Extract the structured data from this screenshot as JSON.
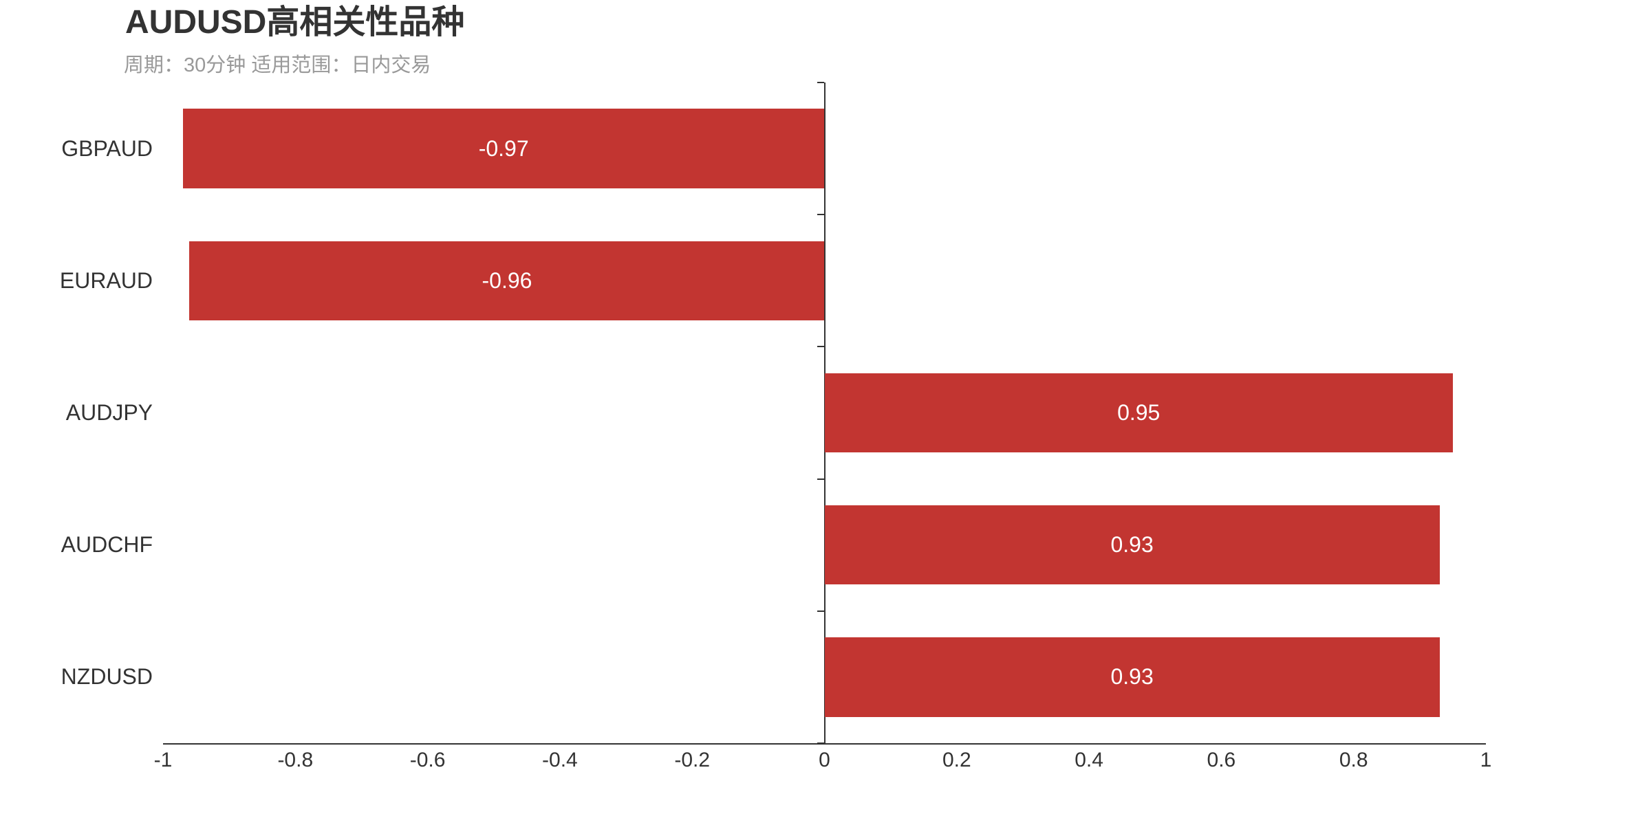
{
  "title": "AUDUSD高相关性品种",
  "subtitle": "周期：30分钟 适用范围：日内交易",
  "colors": {
    "bar": "#c23531",
    "axis_line": "#333333",
    "title_text": "#333333",
    "subtitle_text": "#999999",
    "bar_value_text": "#ffffff",
    "tick_text": "#333333",
    "background": "#ffffff"
  },
  "chart_data": {
    "type": "bar",
    "orientation": "horizontal",
    "title": "AUDUSD高相关性品种",
    "subtitle": "周期：30分钟 适用范围：日内交易",
    "categories": [
      "GBPAUD",
      "EURAUD",
      "AUDJPY",
      "AUDCHF",
      "NZDUSD"
    ],
    "values": [
      -0.97,
      -0.96,
      0.95,
      0.93,
      0.93
    ],
    "value_labels": [
      "-0.97",
      "-0.96",
      "0.95",
      "0.93",
      "0.93"
    ],
    "xlim": [
      -1,
      1
    ],
    "x_tick_values": [
      -1,
      -0.8,
      -0.6,
      -0.4,
      -0.2,
      0,
      0.2,
      0.4,
      0.6,
      0.8,
      1
    ],
    "x_tick_labels": [
      "-1",
      "-0.8",
      "-0.6",
      "-0.4",
      "-0.2",
      "0",
      "0.2",
      "0.4",
      "0.6",
      "0.8",
      "1"
    ],
    "xlabel": "",
    "ylabel": "",
    "grid": false,
    "legend": false,
    "bar_band_fraction": 0.6
  }
}
